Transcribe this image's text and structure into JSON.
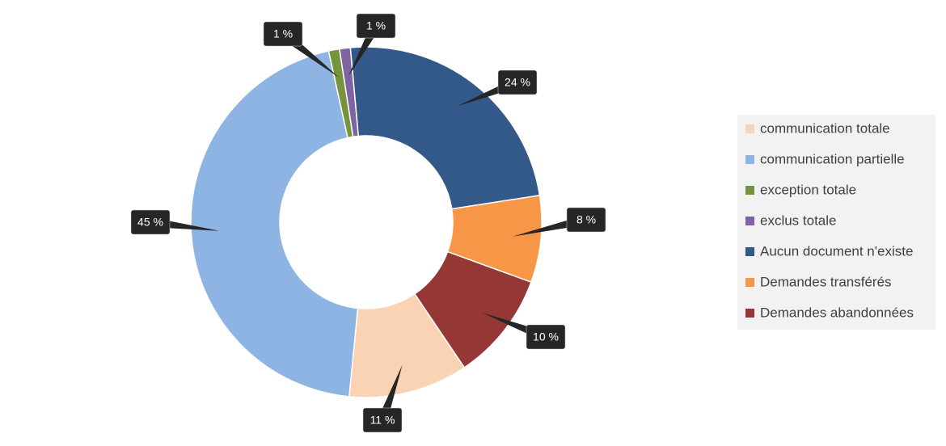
{
  "chart_data": {
    "type": "donut",
    "categories": [
      "communication totale",
      "communication partielle",
      "exception totale",
      "exclus totale",
      "Aucun document n'existe",
      "Demandes transférés",
      "Demandes abandonnées"
    ],
    "values": [
      11,
      45,
      1,
      1,
      24,
      8,
      10
    ],
    "value_labels": [
      "11 %",
      "45 %",
      "1 %",
      "1 %",
      "24 %",
      "8 %",
      "10 %"
    ],
    "colors": [
      "#fad2b4",
      "#8db4e2",
      "#77933c",
      "#8064a2",
      "#32598a",
      "#f79646",
      "#953735"
    ],
    "legend": "right"
  }
}
